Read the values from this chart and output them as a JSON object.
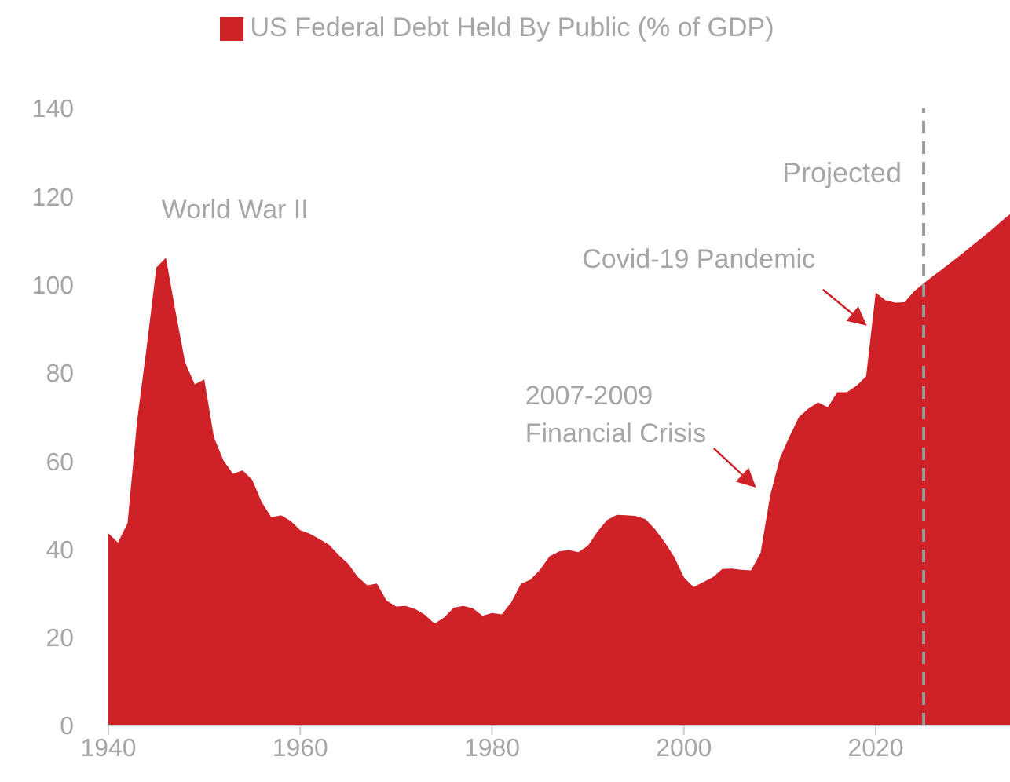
{
  "chart_data": {
    "type": "area",
    "legend": "top",
    "grid": false,
    "x": [
      1940,
      1941,
      1942,
      1943,
      1944,
      1945,
      1946,
      1947,
      1948,
      1949,
      1950,
      1951,
      1952,
      1953,
      1954,
      1955,
      1956,
      1957,
      1958,
      1959,
      1960,
      1961,
      1962,
      1963,
      1964,
      1965,
      1966,
      1967,
      1968,
      1969,
      1970,
      1971,
      1972,
      1973,
      1974,
      1975,
      1976,
      1977,
      1978,
      1979,
      1980,
      1981,
      1982,
      1983,
      1984,
      1985,
      1986,
      1987,
      1988,
      1989,
      1990,
      1991,
      1992,
      1993,
      1994,
      1995,
      1996,
      1997,
      1998,
      1999,
      2000,
      2001,
      2002,
      2003,
      2004,
      2005,
      2006,
      2007,
      2008,
      2009,
      2010,
      2011,
      2012,
      2013,
      2014,
      2015,
      2016,
      2017,
      2018,
      2019,
      2020,
      2021,
      2022,
      2023,
      2024,
      2025,
      2026,
      2027,
      2028,
      2029,
      2030,
      2031,
      2032,
      2033,
      2034
    ],
    "series": [
      {
        "name": "US Federal Debt Held By Public (% of GDP)",
        "color": "#cf2228",
        "values": [
          43.6,
          41.5,
          45.9,
          69.2,
          86.0,
          103.9,
          106.1,
          93.9,
          82.4,
          77.4,
          78.5,
          65.4,
          60.1,
          57.1,
          57.9,
          55.7,
          50.6,
          47.2,
          47.7,
          46.4,
          44.3,
          43.5,
          42.3,
          41.0,
          38.7,
          36.7,
          33.7,
          31.8,
          32.2,
          28.3,
          27.0,
          27.1,
          26.4,
          25.1,
          23.1,
          24.5,
          26.7,
          27.1,
          26.6,
          24.9,
          25.5,
          25.2,
          27.9,
          32.1,
          33.1,
          35.3,
          38.4,
          39.5,
          39.8,
          39.3,
          40.8,
          44.0,
          46.6,
          47.8,
          47.7,
          47.5,
          46.8,
          44.5,
          41.6,
          38.2,
          33.6,
          31.4,
          32.5,
          33.6,
          35.5,
          35.6,
          35.3,
          35.2,
          39.2,
          52.2,
          60.6,
          65.5,
          70.0,
          71.9,
          73.3,
          72.2,
          75.6,
          75.6,
          77.1,
          79.2,
          98.2,
          96.5,
          95.9,
          96.0,
          98.5,
          100.3,
          102.0,
          103.6,
          105.3,
          107.0,
          108.8,
          110.5,
          112.3,
          114.2,
          116.0
        ]
      }
    ],
    "xlim": [
      1940,
      2034
    ],
    "xticks": [
      1940,
      1960,
      1980,
      2000,
      2020
    ],
    "ylim": [
      0,
      140
    ],
    "yticks": [
      0,
      20,
      40,
      60,
      80,
      100,
      120,
      140
    ],
    "ref_lines": [
      {
        "axis": "x",
        "value": 2025,
        "label": "Projected",
        "color": "#999999",
        "line_style": "dashed"
      }
    ],
    "annotations": [
      {
        "text": "World War II",
        "x": 1946,
        "y": 106.1
      },
      {
        "text": "2007-2009\nFinancial Crisis",
        "x": 2009,
        "y": 52.2
      },
      {
        "text": "Covid-19 Pandemic",
        "x": 2019.4,
        "y": 90
      }
    ]
  }
}
